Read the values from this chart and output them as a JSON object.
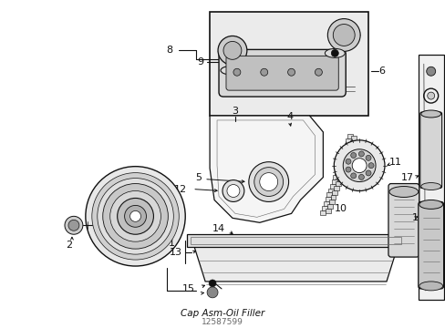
{
  "bg_color": "#ffffff",
  "line_color": "#111111",
  "gray_color": "#666666",
  "med_gray": "#aaaaaa",
  "light_gray": "#cccccc",
  "fill_gray": "#e8e8e8",
  "dot_gray": "#bbbbbb",
  "fig_width": 4.89,
  "fig_height": 3.6,
  "dpi": 100,
  "title": "Cap Asm-Oil Filler",
  "part_number": "12587599"
}
